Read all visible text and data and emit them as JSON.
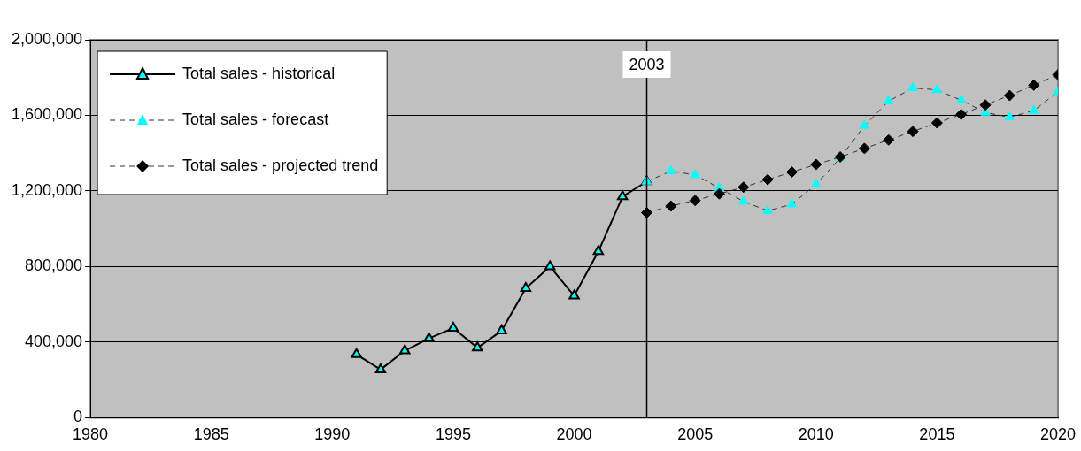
{
  "chart_data": {
    "type": "line",
    "xlim": [
      1980,
      2020
    ],
    "xticks": [
      1980,
      1985,
      1990,
      1995,
      2000,
      2005,
      2010,
      2015,
      2020
    ],
    "ylim": [
      0,
      2000000
    ],
    "yticks": [
      {
        "value": 0,
        "label": "0"
      },
      {
        "value": 400000,
        "label": "400,000"
      },
      {
        "value": 800000,
        "label": "800,000"
      },
      {
        "value": 1200000,
        "label": "1,200,000"
      },
      {
        "value": 1600000,
        "label": "1,600,000"
      },
      {
        "value": 2000000,
        "label": "2,000,000"
      }
    ],
    "grid": "y",
    "legend": "top left",
    "ref_lines": [
      {
        "axis": "x",
        "value": 2003,
        "label": "2003",
        "color": "#000000"
      }
    ],
    "series": [
      {
        "name": "Total sales - historical",
        "color": "#00ffff",
        "marker": "triangle",
        "line_style": "solid",
        "x": [
          1991,
          1992,
          1993,
          1994,
          1995,
          1996,
          1997,
          1998,
          1999,
          2000,
          2001,
          2002,
          2003
        ],
        "values": [
          335000,
          255000,
          355000,
          420000,
          475000,
          370000,
          460000,
          685000,
          800000,
          645000,
          880000,
          1170000,
          1250000
        ]
      },
      {
        "name": "Total sales - forecast",
        "color": "#00ffff",
        "marker": "triangle",
        "line_style": "dashed",
        "x": [
          2003,
          2004,
          2005,
          2006,
          2007,
          2008,
          2009,
          2010,
          2011,
          2012,
          2013,
          2014,
          2015,
          2016,
          2017,
          2018,
          2019,
          2020
        ],
        "values": [
          1250000,
          1305000,
          1285000,
          1215000,
          1145000,
          1095000,
          1130000,
          1235000,
          1375000,
          1545000,
          1675000,
          1745000,
          1735000,
          1680000,
          1615000,
          1590000,
          1625000,
          1725000
        ]
      },
      {
        "name": "Total sales - projected trend",
        "color": "#000000",
        "marker": "diamond",
        "line_style": "dashed",
        "x": [
          2003,
          2004,
          2005,
          2006,
          2007,
          2008,
          2009,
          2010,
          2011,
          2012,
          2013,
          2014,
          2015,
          2016,
          2017,
          2018,
          2019,
          2020
        ],
        "values": [
          1085000,
          1120000,
          1150000,
          1185000,
          1220000,
          1260000,
          1300000,
          1340000,
          1380000,
          1425000,
          1470000,
          1515000,
          1560000,
          1605000,
          1655000,
          1705000,
          1760000,
          1815000
        ]
      }
    ]
  }
}
